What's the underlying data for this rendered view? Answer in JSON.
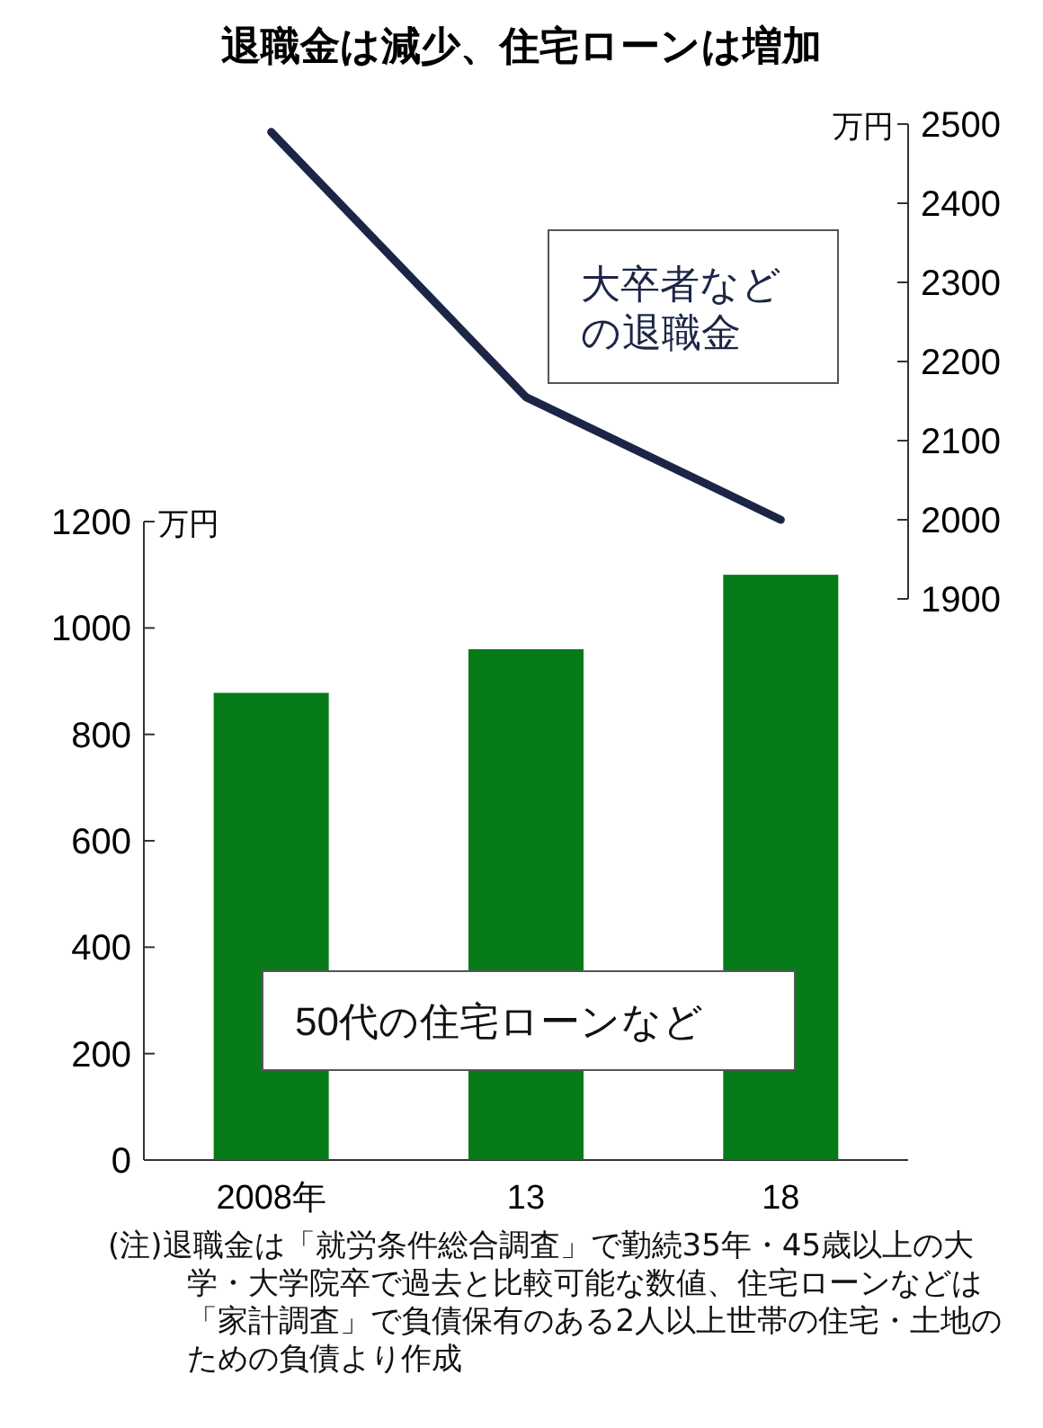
{
  "chart_data": [
    {
      "type": "line",
      "title": "退職金は減少、住宅ローンは増加",
      "categories": [
        null,
        null,
        null
      ],
      "series": [
        {
          "name": "大卒者などの退職金",
          "color": "#1c2545",
          "values": [
            2490,
            2155,
            2000
          ]
        }
      ],
      "ylabel": "万円",
      "ylim": [
        1900,
        2500
      ],
      "yticks": [
        1900,
        2000,
        2100,
        2200,
        2300,
        2400,
        2500
      ],
      "tick_labels": "y",
      "legend": false,
      "grid": false,
      "marker": "none",
      "line_style": "solid"
    },
    {
      "type": "bar",
      "categories": [
        "2008年",
        "13",
        "18"
      ],
      "series": [
        {
          "name": "50代の住宅ローンなど",
          "color": "#067a18",
          "values": [
            878,
            960,
            1100
          ]
        }
      ],
      "ylabel": "万円",
      "ylim": [
        0,
        1200
      ],
      "yticks": [
        0,
        200,
        400,
        600,
        800,
        1000,
        1200
      ],
      "legend": false,
      "grid": false,
      "annotations": [
        "(注)退職金は「就労条件総合調査」で勤続35年・45歳以上の大学・大学院卒で過去と比較可能な数値、住宅ローンなどは「家計調査」で負債保有のある2人以上世帯の住宅・土地のための負債より作成"
      ]
    }
  ]
}
